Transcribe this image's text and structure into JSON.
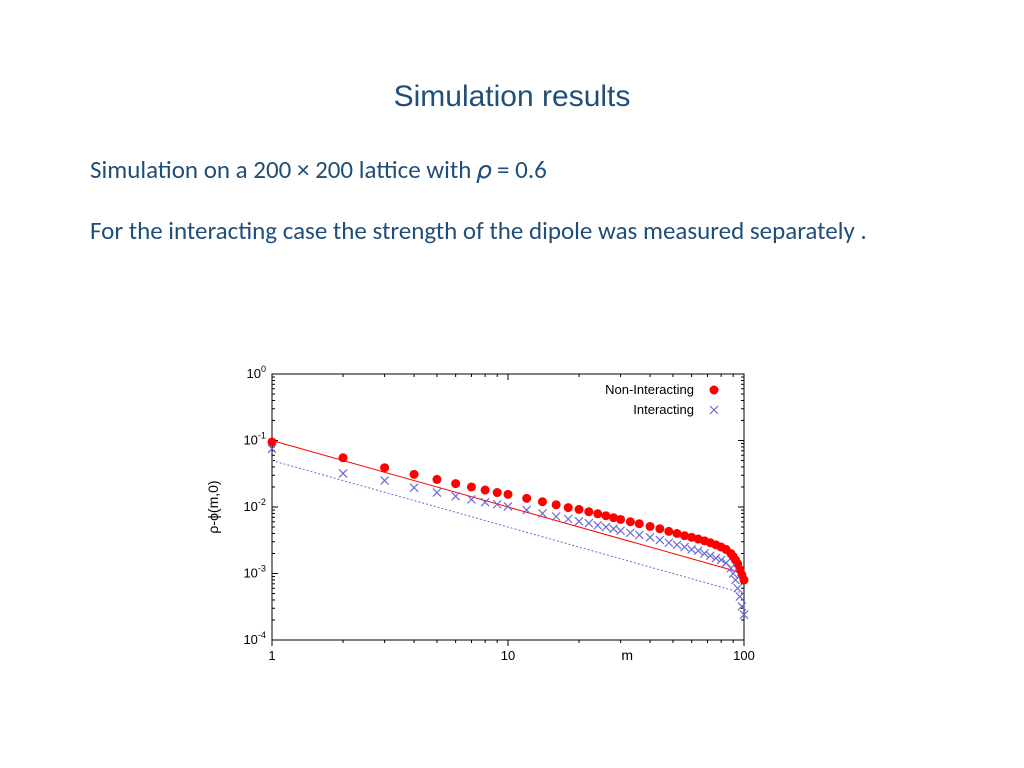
{
  "title": "Simulation results",
  "para1": "Simulation on a 200 × 200 lattice with 𝜌 = 0.6",
  "para2": "For the interacting case the strength of the dipole was measured separately .",
  "chart": {
    "type": "scatter-loglog",
    "xlabel": "m",
    "ylabel": "ρ-ϕ(m,0)",
    "xlim": [
      1,
      100
    ],
    "ylim": [
      0.0001,
      1
    ],
    "xticks": [
      1,
      10,
      100
    ],
    "yticks": [
      1,
      0.1,
      0.01,
      0.001,
      0.0001
    ],
    "ytick_labels": [
      "10^0",
      "10^-1",
      "10^-2",
      "10^-3",
      "10^-4"
    ],
    "background_color": "#ffffff",
    "axis_color": "#000000",
    "tick_fontsize": 13,
    "label_fontsize": 14,
    "legend": {
      "position": "top-right",
      "fontsize": 13,
      "items": [
        {
          "label": "Non-Interacting",
          "marker": "circle",
          "color": "#ff0000"
        },
        {
          "label": "Interacting",
          "marker": "x",
          "color": "#6a6ad4"
        }
      ]
    },
    "series": [
      {
        "name": "Non-Interacting",
        "marker": "circle",
        "marker_size": 4.5,
        "color": "#ff0000",
        "fit_line": {
          "color": "#ff0000",
          "width": 1,
          "dash": "none",
          "x0": 1,
          "y0": 0.1,
          "x1": 100,
          "y1": 0.001
        },
        "points": [
          [
            1,
            0.095
          ],
          [
            2,
            0.055
          ],
          [
            3,
            0.039
          ],
          [
            4,
            0.031
          ],
          [
            5,
            0.026
          ],
          [
            6,
            0.0225
          ],
          [
            7,
            0.02
          ],
          [
            8,
            0.018
          ],
          [
            9,
            0.0165
          ],
          [
            10,
            0.0155
          ],
          [
            12,
            0.0135
          ],
          [
            14,
            0.012
          ],
          [
            16,
            0.0108
          ],
          [
            18,
            0.0098
          ],
          [
            20,
            0.0092
          ],
          [
            22,
            0.0085
          ],
          [
            24,
            0.0079
          ],
          [
            26,
            0.0074
          ],
          [
            28,
            0.0069
          ],
          [
            30,
            0.0065
          ],
          [
            33,
            0.006
          ],
          [
            36,
            0.0056
          ],
          [
            40,
            0.0051
          ],
          [
            44,
            0.0047
          ],
          [
            48,
            0.0043
          ],
          [
            52,
            0.004
          ],
          [
            56,
            0.0037
          ],
          [
            60,
            0.0035
          ],
          [
            64,
            0.0033
          ],
          [
            68,
            0.0031
          ],
          [
            72,
            0.0029
          ],
          [
            76,
            0.0027
          ],
          [
            80,
            0.0025
          ],
          [
            84,
            0.0023
          ],
          [
            88,
            0.002
          ],
          [
            90,
            0.0018
          ],
          [
            92,
            0.0016
          ],
          [
            94,
            0.0014
          ],
          [
            96,
            0.00115
          ],
          [
            98,
            0.00095
          ],
          [
            100,
            0.0008
          ]
        ]
      },
      {
        "name": "Interacting",
        "marker": "x",
        "marker_size": 4,
        "color": "#6a6ad4",
        "fit_line": {
          "color": "#6a6ad4",
          "width": 1,
          "dash": "2,2",
          "x0": 1,
          "y0": 0.05,
          "x1": 100,
          "y1": 0.0005
        },
        "points": [
          [
            1,
            0.075
          ],
          [
            2,
            0.032
          ],
          [
            3,
            0.025
          ],
          [
            4,
            0.0195
          ],
          [
            5,
            0.0165
          ],
          [
            6,
            0.0145
          ],
          [
            7,
            0.013
          ],
          [
            8,
            0.0118
          ],
          [
            9,
            0.011
          ],
          [
            10,
            0.0102
          ],
          [
            12,
            0.009
          ],
          [
            14,
            0.008
          ],
          [
            16,
            0.0072
          ],
          [
            18,
            0.0066
          ],
          [
            20,
            0.0061
          ],
          [
            22,
            0.0057
          ],
          [
            24,
            0.0053
          ],
          [
            26,
            0.005
          ],
          [
            28,
            0.0047
          ],
          [
            30,
            0.0044
          ],
          [
            33,
            0.0041
          ],
          [
            36,
            0.0038
          ],
          [
            40,
            0.0035
          ],
          [
            44,
            0.0032
          ],
          [
            48,
            0.0029
          ],
          [
            52,
            0.0027
          ],
          [
            56,
            0.0025
          ],
          [
            60,
            0.0023
          ],
          [
            64,
            0.0022
          ],
          [
            68,
            0.002
          ],
          [
            72,
            0.00185
          ],
          [
            76,
            0.0017
          ],
          [
            80,
            0.0016
          ],
          [
            84,
            0.00145
          ],
          [
            88,
            0.0012
          ],
          [
            90,
            0.001
          ],
          [
            92,
            0.0008
          ],
          [
            94,
            0.0006
          ],
          [
            96,
            0.00045
          ],
          [
            98,
            0.00032
          ],
          [
            100,
            0.00024
          ]
        ]
      }
    ]
  }
}
